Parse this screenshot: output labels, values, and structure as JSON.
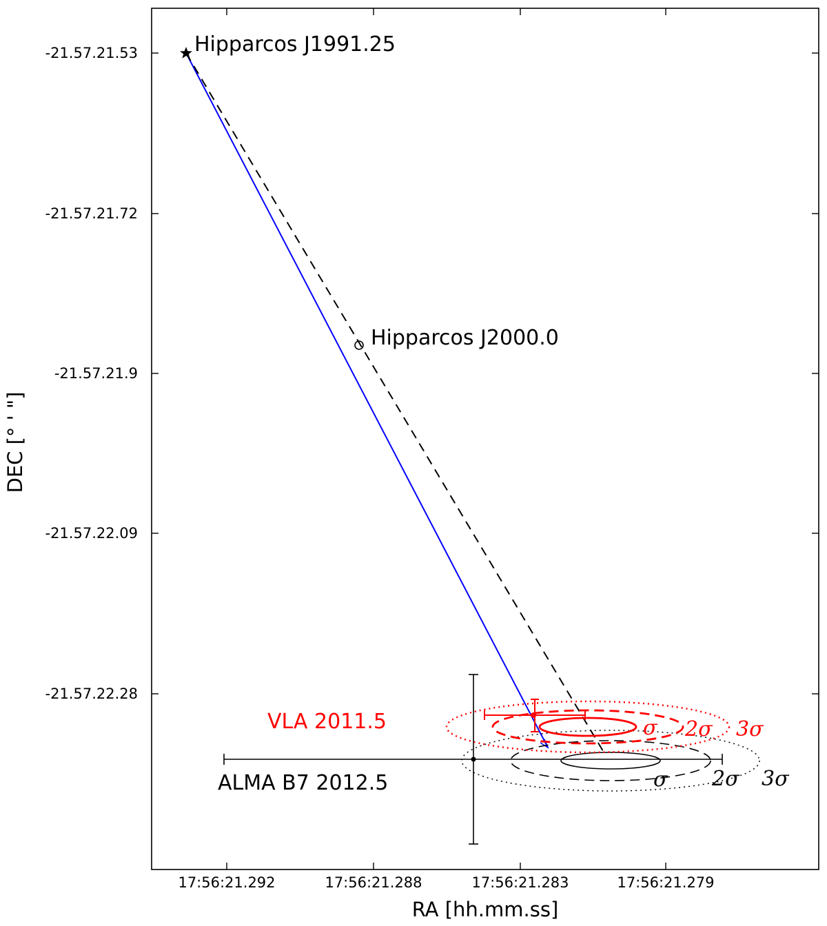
{
  "chart_data": {
    "type": "scatter",
    "xlabel": "RA [hh.mm.ss]",
    "ylabel": "DEC [° ' \"]",
    "x_ticks": [
      "17:56:21.292",
      "17:56:21.288",
      "17:56:21.283",
      "17:56:21.279"
    ],
    "y_ticks": [
      "-21.57.21.53",
      "-21.57.21.72",
      "-21.57.21.9",
      "-21.57.22.09",
      "-21.57.22.28"
    ],
    "points": [
      {
        "name": "hipparcos-1991",
        "label": "Hipparcos J1991.25",
        "marker": "star"
      },
      {
        "name": "hipparcos-2000",
        "label": "Hipparcos J2000.0",
        "marker": "circle"
      },
      {
        "name": "vla",
        "label": "VLA  2011.5",
        "color": "#ff0000"
      },
      {
        "name": "alma",
        "label": "ALMA B7  2012.5",
        "color": "#000000"
      }
    ],
    "sigma_labels": {
      "vla": [
        "σ",
        "2σ",
        "3σ"
      ],
      "alma": [
        "σ",
        "2σ",
        "3σ"
      ]
    },
    "colors": {
      "proper_motion_line": "#0000ff",
      "vla": "#ff0000",
      "alma": "#000000"
    }
  }
}
